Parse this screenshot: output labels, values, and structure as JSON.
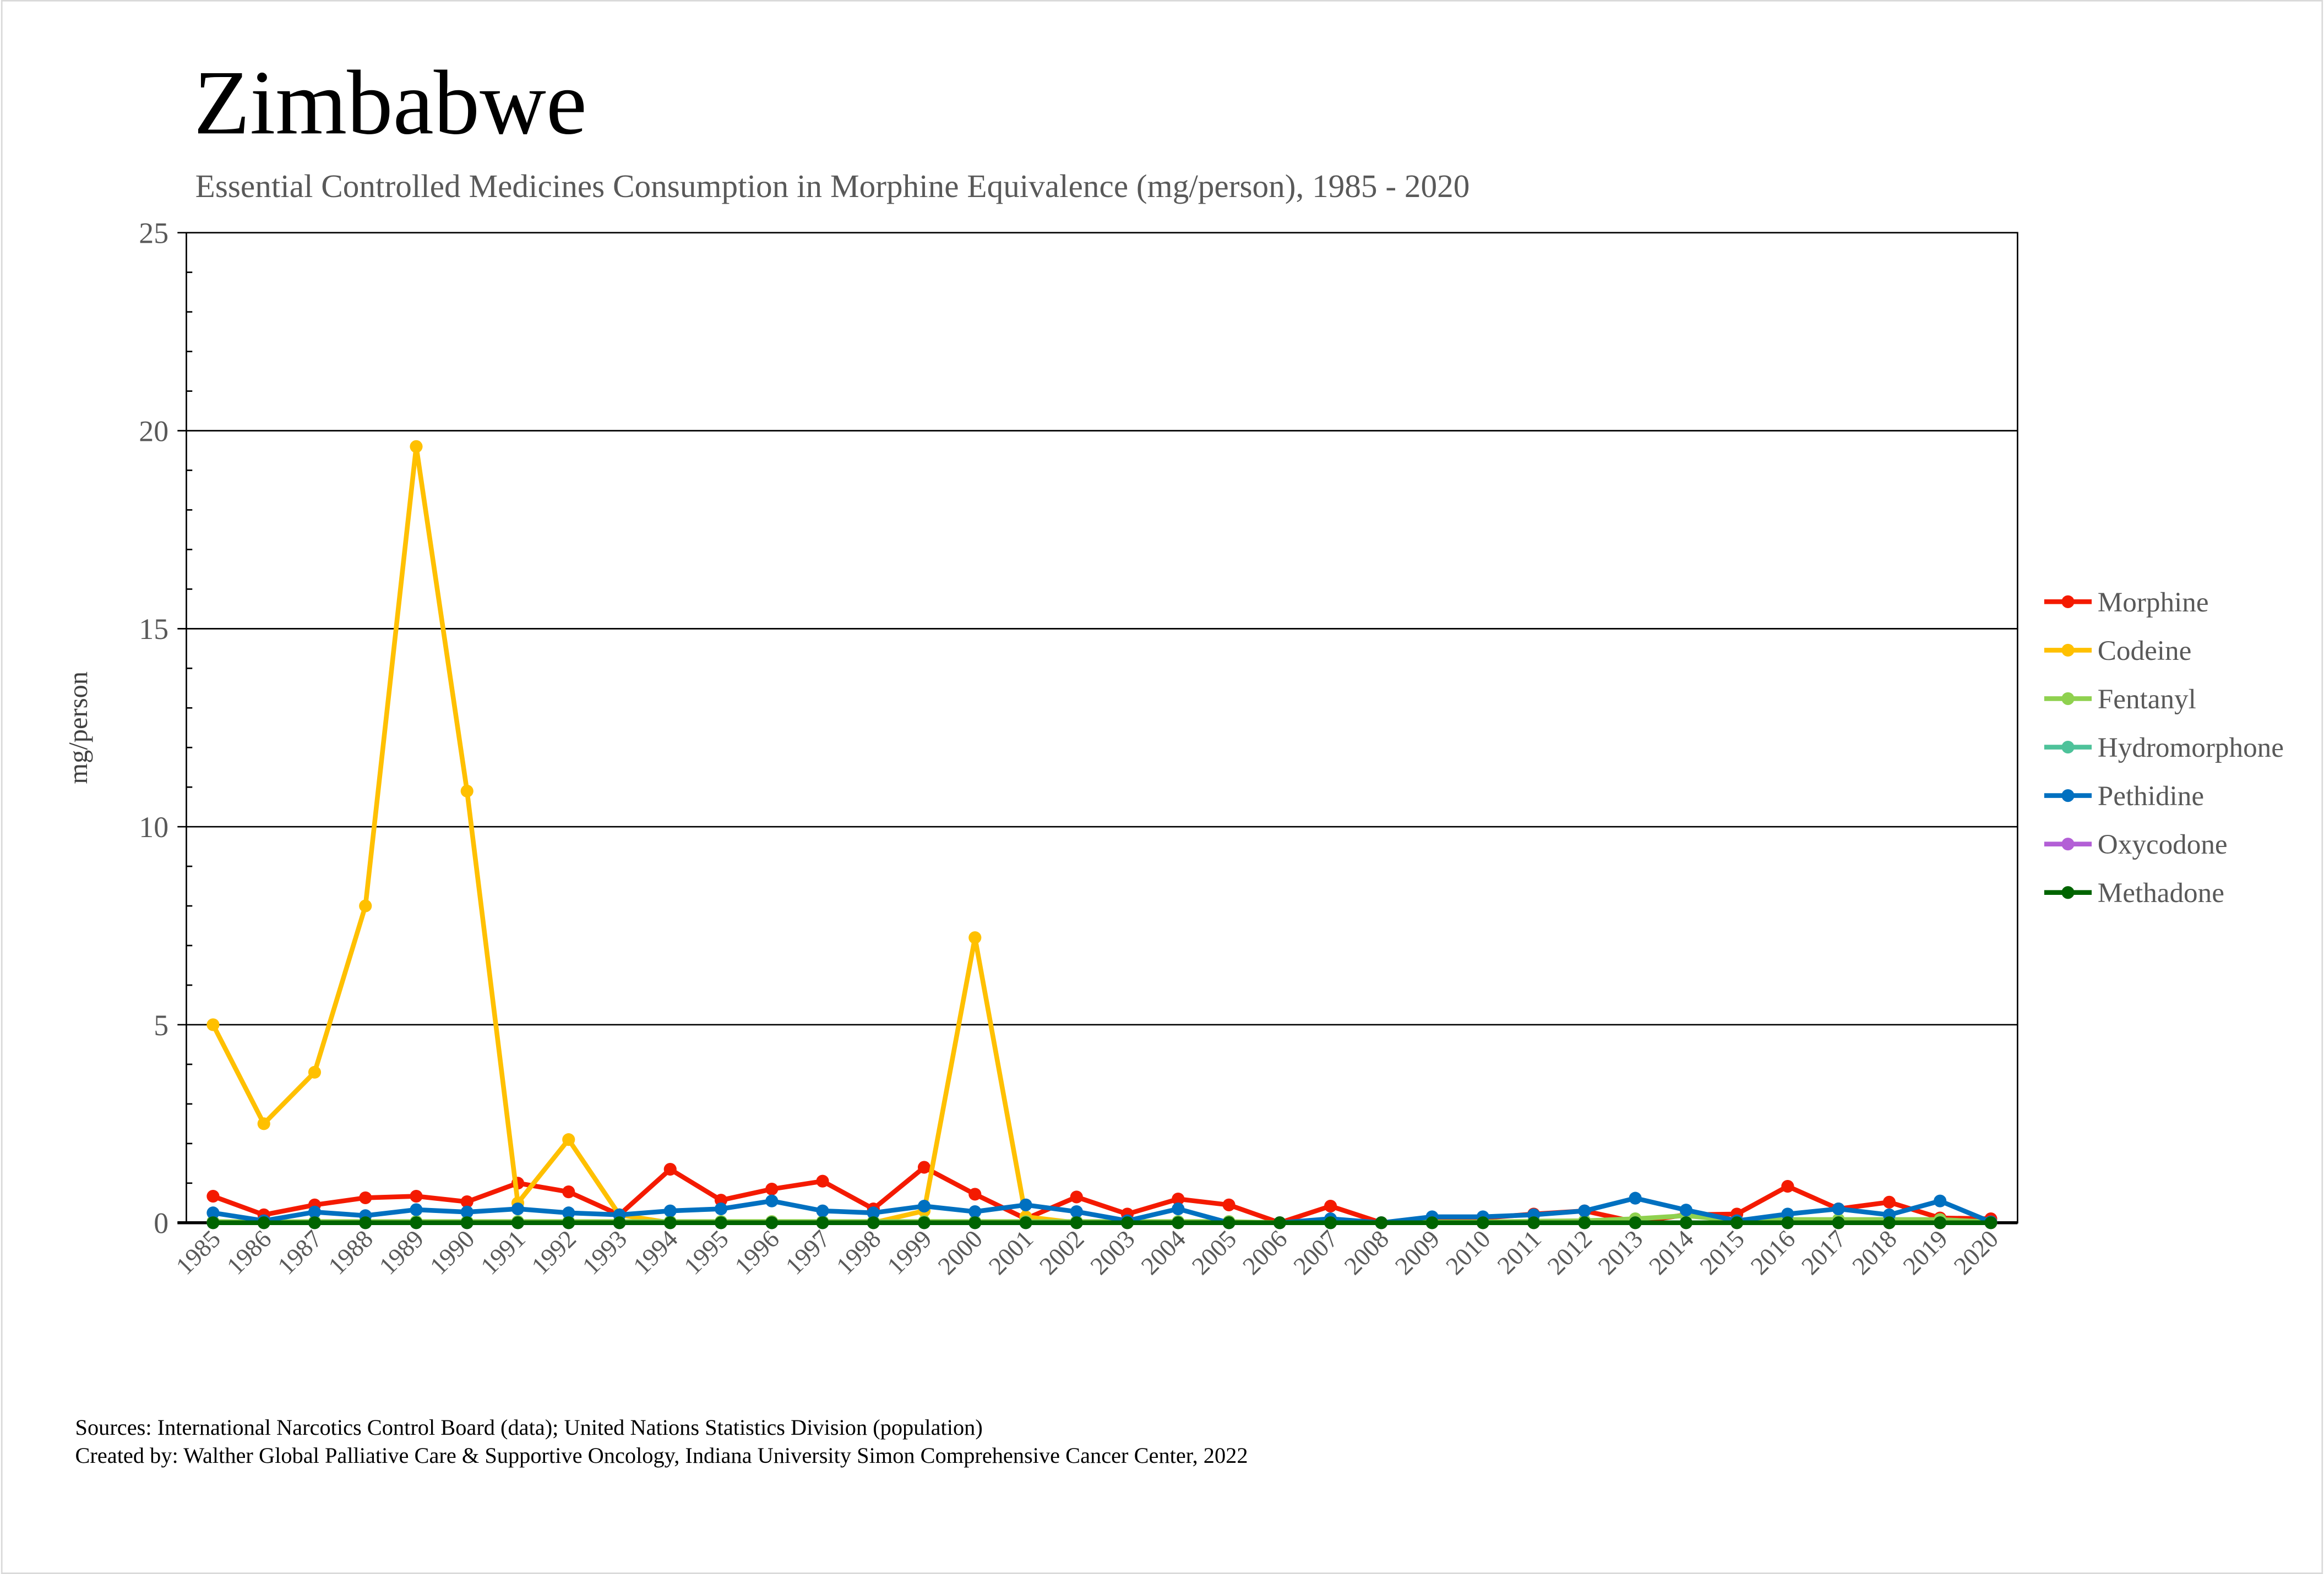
{
  "title": "Zimbabwe",
  "subtitle": "Essential Controlled Medicines Consumption in Morphine Equivalence (mg/person), 1985 - 2020",
  "footer": {
    "sources": "Sources: International Narcotics Control Board (data); United Nations Statistics Division (population)",
    "created_by": "Created by: Walther Global Palliative Care & Supportive Oncology, Indiana University Simon Comprehensive Cancer Center, 2022"
  },
  "chart_data": {
    "type": "line",
    "title": "Zimbabwe",
    "xlabel": "",
    "ylabel": "mg/person",
    "ylim": [
      0,
      25
    ],
    "yticks": [
      "0",
      "5",
      "10",
      "15",
      "20",
      "25"
    ],
    "grid": true,
    "legend_position": "right",
    "x": [
      "1985",
      "1986",
      "1987",
      "1988",
      "1989",
      "1990",
      "1991",
      "1992",
      "1993",
      "1994",
      "1995",
      "1996",
      "1997",
      "1998",
      "1999",
      "2000",
      "2001",
      "2002",
      "2003",
      "2004",
      "2005",
      "2006",
      "2007",
      "2008",
      "2009",
      "2010",
      "2011",
      "2012",
      "2013",
      "2014",
      "2015",
      "2016",
      "2017",
      "2018",
      "2019",
      "2020"
    ],
    "series": [
      {
        "name": "Morphine",
        "color": "#f41a00",
        "values": [
          0.67,
          0.2,
          0.45,
          0.63,
          0.67,
          0.53,
          1.0,
          0.78,
          0.2,
          1.35,
          0.57,
          0.85,
          1.05,
          0.35,
          1.4,
          0.72,
          0.1,
          0.65,
          0.22,
          0.6,
          0.45,
          0,
          0.42,
          0,
          0.1,
          0.12,
          0.22,
          0.3,
          0.02,
          0.2,
          0.22,
          0.92,
          0.35,
          0.52,
          0.12,
          0.1
        ]
      },
      {
        "name": "Codeine",
        "color": "#ffc000",
        "values": [
          5.0,
          2.5,
          3.8,
          8.0,
          19.6,
          10.9,
          0.5,
          2.1,
          0.2,
          0,
          0,
          0,
          0,
          0,
          0.3,
          7.2,
          0.15,
          0,
          0,
          0,
          0,
          0,
          0,
          0,
          0,
          0,
          0,
          0,
          0,
          0,
          0,
          0,
          0,
          0,
          0,
          0
        ]
      },
      {
        "name": "Fentanyl",
        "color": "#8fd14f",
        "values": [
          0.03,
          0.02,
          0.03,
          0.03,
          0.03,
          0.03,
          0.03,
          0.03,
          0.03,
          0.03,
          0.03,
          0.03,
          0.03,
          0.03,
          0.03,
          0.03,
          0.03,
          0.03,
          0.03,
          0.03,
          0.03,
          0,
          0,
          0,
          0.02,
          0.02,
          0.04,
          0.05,
          0.1,
          0.18,
          0.05,
          0.08,
          0.08,
          0.08,
          0.08,
          0.02
        ]
      },
      {
        "name": "Hydromorphone",
        "color": "#4ec29a",
        "values": [
          0,
          0,
          0,
          0,
          0,
          0,
          0,
          0,
          0,
          0,
          0,
          0,
          0,
          0,
          0,
          0,
          0,
          0,
          0,
          0,
          0,
          0,
          0,
          0,
          0,
          0,
          0,
          0,
          0,
          0,
          0,
          0,
          0,
          0,
          0,
          0
        ]
      },
      {
        "name": "Pethidine",
        "color": "#0070c0",
        "values": [
          0.25,
          0.05,
          0.27,
          0.18,
          0.33,
          0.27,
          0.35,
          0.25,
          0.2,
          0.3,
          0.35,
          0.55,
          0.3,
          0.25,
          0.42,
          0.28,
          0.45,
          0.28,
          0.05,
          0.35,
          0,
          0,
          0.1,
          0,
          0.15,
          0.15,
          0.2,
          0.3,
          0.62,
          0.32,
          0.05,
          0.22,
          0.35,
          0.2,
          0.55,
          0.02
        ]
      },
      {
        "name": "Oxycodone",
        "color": "#b35fd6",
        "values": [
          0,
          0,
          0,
          0,
          0,
          0,
          0,
          0,
          0,
          0,
          0,
          0,
          0,
          0,
          0,
          0,
          0,
          0,
          0,
          0,
          0,
          0,
          0,
          0,
          0,
          0,
          0,
          0,
          0,
          0,
          0,
          0,
          0,
          0,
          0,
          0
        ]
      },
      {
        "name": "Methadone",
        "color": "#006400",
        "values": [
          0,
          0,
          0,
          0,
          0,
          0,
          0,
          0,
          0,
          0,
          0,
          0,
          0,
          0,
          0,
          0,
          0,
          0,
          0,
          0,
          0,
          0,
          0,
          0,
          0,
          0,
          0,
          0,
          0,
          0,
          0,
          0,
          0,
          0,
          0,
          0
        ]
      }
    ]
  }
}
